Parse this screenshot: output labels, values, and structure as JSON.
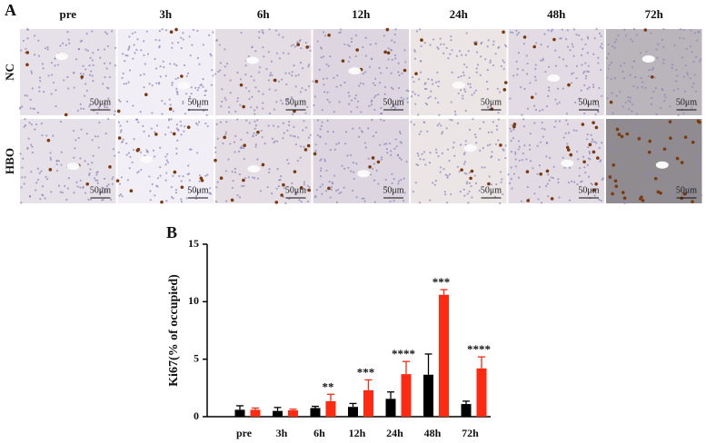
{
  "panel_a": {
    "label": "A",
    "columns": [
      "pre",
      "3h",
      "6h",
      "12h",
      "24h",
      "48h",
      "72h"
    ],
    "rows": [
      "NC",
      "HBO"
    ],
    "scale_bar": "50μm"
  },
  "chart_data": {
    "type": "bar",
    "label": "B",
    "ylabel": "Ki67(% of occupied)",
    "categories": [
      "pre",
      "3h",
      "6h",
      "12h",
      "24h",
      "48h",
      "72h"
    ],
    "series": [
      {
        "color": "#000000",
        "values": [
          0.6,
          0.5,
          0.75,
          0.85,
          1.55,
          3.65,
          1.1
        ],
        "errors": [
          0.35,
          0.3,
          0.15,
          0.3,
          0.6,
          1.8,
          0.25
        ]
      },
      {
        "color": "#ff2a12",
        "values": [
          0.6,
          0.55,
          1.35,
          2.3,
          3.7,
          10.6,
          4.2
        ],
        "errors": [
          0.15,
          0.1,
          0.6,
          0.9,
          1.1,
          0.45,
          1.0
        ]
      }
    ],
    "significance": [
      null,
      null,
      "**",
      "***",
      "****",
      "***",
      "****"
    ],
    "ylim": [
      0,
      15
    ],
    "yticks": [
      0,
      5,
      10,
      15
    ]
  }
}
